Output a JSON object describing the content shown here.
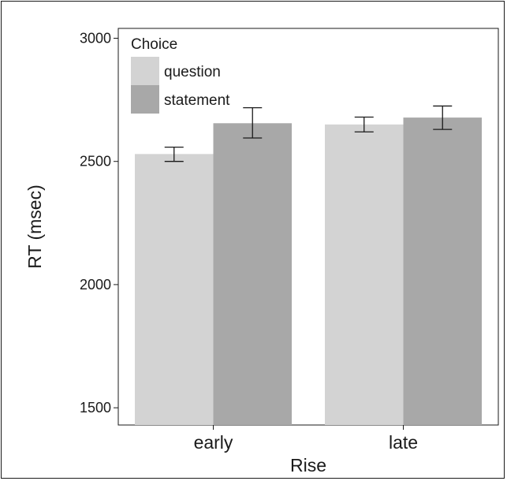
{
  "chart_data": {
    "type": "bar",
    "title": "",
    "xlabel": "Rise",
    "ylabel": "RT (msec)",
    "categories": [
      "early",
      "late"
    ],
    "ylim": [
      1430,
      3040
    ],
    "yticks": [
      1500,
      2000,
      2500,
      3000
    ],
    "grid": false,
    "legend": {
      "title": "Choice",
      "placement": "top-left"
    },
    "series": [
      {
        "name": "question",
        "color": "#d3d3d3",
        "values": [
          2530,
          2650
        ],
        "error_low": [
          2500,
          2620
        ],
        "error_high": [
          2558,
          2680
        ]
      },
      {
        "name": "statement",
        "color": "#a8a8a8",
        "values": [
          2655,
          2678
        ],
        "error_low": [
          2595,
          2630
        ],
        "error_high": [
          2718,
          2725
        ]
      }
    ]
  }
}
